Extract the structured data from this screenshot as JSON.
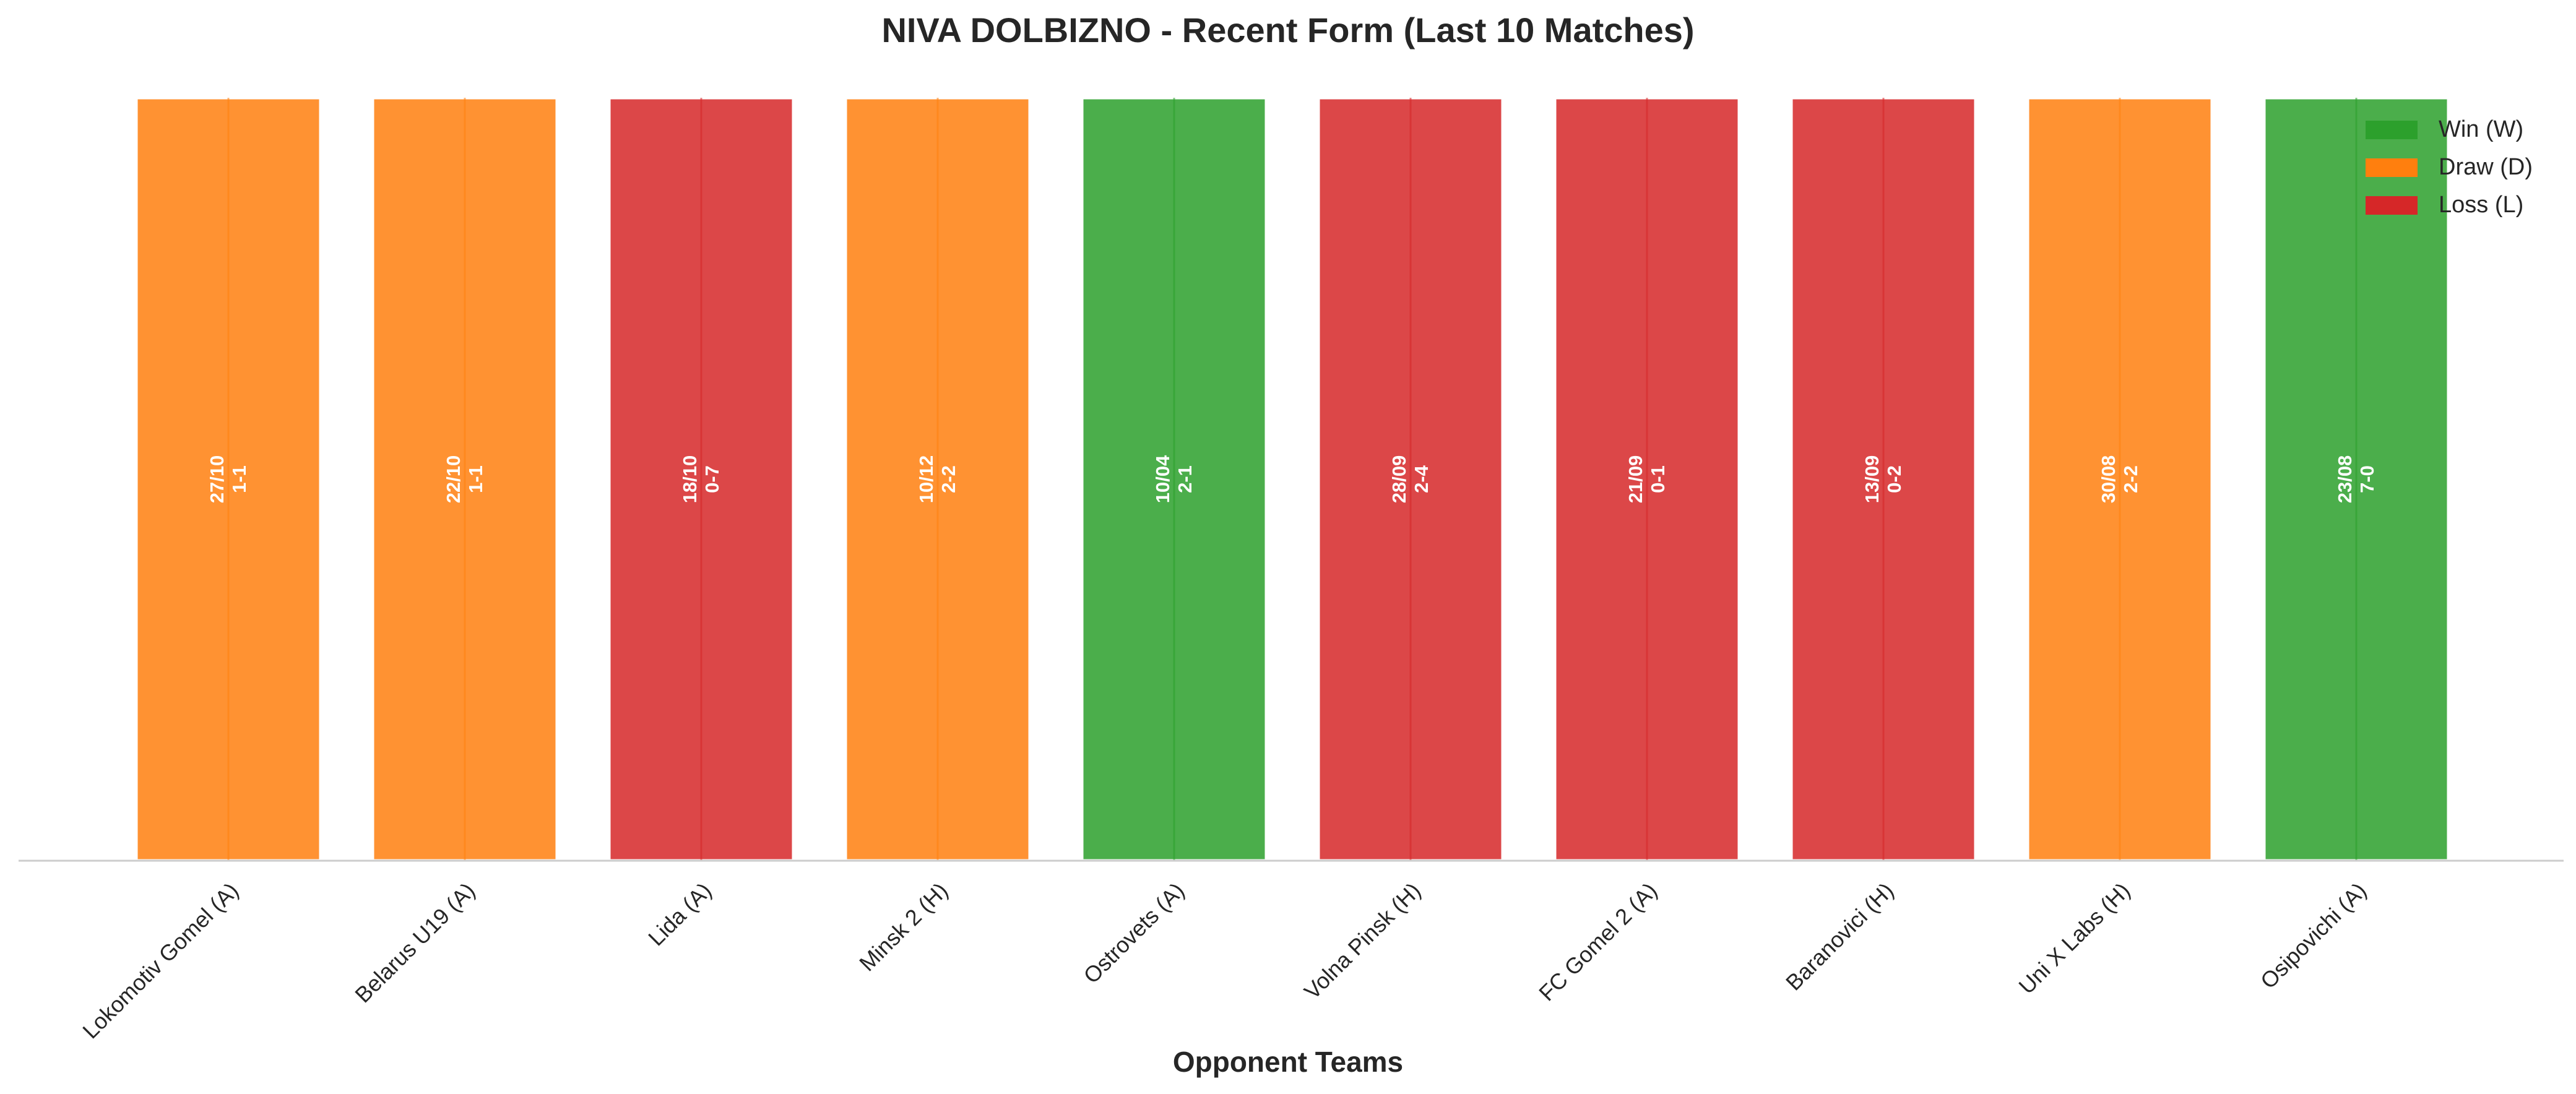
{
  "chart_data": {
    "type": "bar",
    "title": "NIVA DOLBIZNO - Recent Form (Last 10 Matches)",
    "xlabel": "Opponent Teams",
    "ylabel": "",
    "categories": [
      "Lokomotiv Gomel (A)",
      "Belarus U19 (A)",
      "Lida (A)",
      "Minsk 2 (H)",
      "Ostrovets (A)",
      "Volna Pinsk (H)",
      "FC Gomel 2 (A)",
      "Baranovici (H)",
      "Uni X Labs (H)",
      "Osipovichi (A)"
    ],
    "values": [
      1,
      1,
      1,
      1,
      1,
      1,
      1,
      1,
      1,
      1
    ],
    "results": [
      "D",
      "D",
      "L",
      "D",
      "W",
      "L",
      "L",
      "L",
      "D",
      "W"
    ],
    "dates": [
      "27/10",
      "22/10",
      "18/10",
      "10/12",
      "10/04",
      "28/09",
      "21/09",
      "13/09",
      "30/08",
      "23/08"
    ],
    "scores": [
      "1-1",
      "1-1",
      "0-7",
      "2-2",
      "2-1",
      "2-4",
      "0-1",
      "0-2",
      "2-2",
      "7-0"
    ],
    "ylim": [
      0,
      1
    ],
    "grid": false,
    "legend": {
      "placement": "top-right",
      "entries": [
        {
          "key": "W",
          "label": "Win (W)"
        },
        {
          "key": "D",
          "label": "Draw (D)"
        },
        {
          "key": "L",
          "label": "Loss (L)"
        }
      ]
    },
    "colors": {
      "W": "#2ca02c",
      "D": "#ff7f0e",
      "L": "#d62728",
      "axis": "#cccccc",
      "text": "#262626"
    }
  }
}
